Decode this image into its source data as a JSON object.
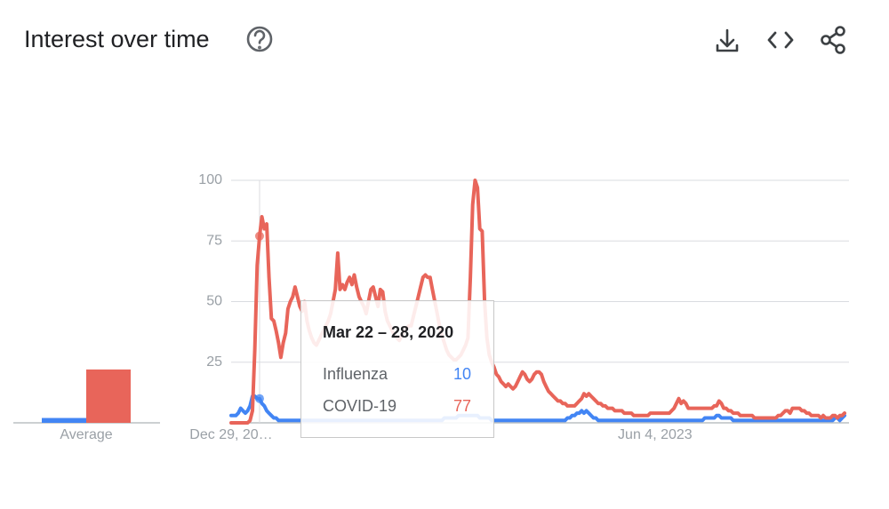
{
  "header": {
    "title": "Interest over time"
  },
  "chart_data": {
    "type": "line",
    "categories": [
      "Dec 29, 20…",
      null,
      null,
      null,
      null,
      null,
      null,
      null,
      null,
      null,
      null,
      null,
      null,
      null,
      null,
      null,
      null,
      null,
      null,
      null,
      null,
      null,
      null,
      null,
      null,
      null,
      null,
      null,
      null,
      null,
      null,
      null,
      null,
      null,
      null,
      null,
      null,
      null,
      null,
      null,
      null,
      null,
      null,
      null,
      null,
      null,
      null,
      null,
      null,
      null,
      null,
      null,
      null,
      null,
      null,
      null,
      null,
      null,
      null,
      null,
      null,
      null,
      null,
      null,
      null,
      null,
      null,
      null,
      null,
      null,
      null,
      null,
      null,
      null,
      null,
      null,
      null,
      null,
      null,
      null,
      null,
      null,
      null,
      null,
      null,
      null,
      null,
      null,
      null,
      null,
      null,
      null,
      null,
      null,
      null,
      null,
      null,
      null,
      null,
      null,
      null,
      null,
      null,
      null,
      null,
      null,
      null,
      null,
      null,
      null,
      null,
      null,
      null,
      null,
      null,
      null,
      null,
      null,
      null,
      null,
      null,
      null,
      null,
      null,
      null,
      null,
      null,
      null,
      null,
      null,
      null,
      null,
      null,
      null,
      null,
      null,
      null,
      null,
      null,
      null,
      null,
      null,
      null,
      null,
      null,
      null,
      null,
      null,
      null,
      null,
      null,
      null,
      null,
      null,
      null,
      null,
      null,
      null,
      null,
      null,
      null,
      null,
      null,
      null,
      null,
      null,
      null,
      null,
      null,
      null,
      null,
      null,
      null,
      null,
      null,
      null,
      null,
      null,
      null,
      "Jun 4, 2023",
      null,
      null,
      null,
      null,
      null,
      null,
      null,
      null,
      null,
      null,
      null,
      null,
      null,
      null,
      null,
      null,
      null,
      null,
      null,
      null,
      null,
      null,
      null,
      null,
      null,
      null,
      null,
      null,
      null,
      null,
      null,
      null,
      null,
      null,
      null,
      null,
      null,
      null,
      null,
      null,
      null,
      null,
      null,
      null,
      null,
      null,
      null,
      null,
      null,
      null,
      null,
      null,
      null,
      null,
      null,
      null,
      null,
      null,
      null,
      null,
      null,
      null,
      null,
      null,
      null,
      null,
      null,
      null,
      null,
      null,
      null,
      null,
      null,
      null,
      null,
      null,
      null,
      null,
      null,
      null
    ],
    "ylim": [
      0,
      100
    ],
    "yticks": [
      25,
      50,
      75,
      100
    ],
    "grid": true,
    "series": [
      {
        "name": "Influenza",
        "color": "#4285f4",
        "values": [
          3,
          3,
          3,
          4,
          6,
          5,
          4,
          5,
          7,
          11,
          11,
          10,
          10,
          8,
          7,
          5,
          4,
          3,
          2,
          2,
          1,
          1,
          1,
          1,
          1,
          1,
          1,
          1,
          1,
          1,
          1,
          1,
          1,
          1,
          1,
          1,
          1,
          1,
          1,
          1,
          1,
          1,
          1,
          1,
          1,
          1,
          1,
          1,
          1,
          1,
          1,
          1,
          1,
          1,
          1,
          1,
          1,
          1,
          1,
          1,
          1,
          1,
          1,
          1,
          1,
          1,
          1,
          1,
          1,
          1,
          1,
          1,
          1,
          1,
          1,
          1,
          1,
          1,
          1,
          1,
          1,
          1,
          1,
          1,
          1,
          1,
          1,
          1,
          1,
          1,
          2,
          2,
          2,
          2,
          2,
          2,
          3,
          3,
          3,
          3,
          3,
          3,
          3,
          3,
          3,
          2,
          2,
          2,
          2,
          2,
          1,
          1,
          1,
          1,
          1,
          1,
          1,
          1,
          1,
          1,
          1,
          1,
          1,
          1,
          1,
          1,
          1,
          1,
          1,
          1,
          1,
          1,
          1,
          1,
          1,
          1,
          1,
          1,
          1,
          1,
          1,
          1,
          2,
          2,
          3,
          3,
          4,
          4,
          5,
          4,
          5,
          4,
          3,
          2,
          2,
          1,
          1,
          1,
          1,
          1,
          1,
          1,
          1,
          1,
          1,
          1,
          1,
          1,
          1,
          1,
          1,
          1,
          1,
          1,
          1,
          1,
          1,
          1,
          1,
          1,
          1,
          1,
          1,
          1,
          1,
          1,
          1,
          1,
          1,
          1,
          1,
          1,
          1,
          1,
          1,
          1,
          1,
          1,
          1,
          1,
          2,
          2,
          2,
          2,
          2,
          3,
          3,
          2,
          2,
          2,
          2,
          2,
          1,
          1,
          1,
          1,
          1,
          1,
          1,
          1,
          1,
          1,
          1,
          1,
          1,
          1,
          1,
          1,
          1,
          1,
          1,
          1,
          1,
          1,
          1,
          1,
          1,
          1,
          1,
          1,
          1,
          1,
          1,
          1,
          1,
          1,
          1,
          1,
          1,
          1,
          1,
          1,
          1,
          1,
          1,
          2,
          2,
          1,
          2,
          3
        ]
      },
      {
        "name": "COVID-19",
        "color": "#e8655a",
        "values": [
          0,
          0,
          0,
          0,
          0,
          0,
          0,
          0,
          1,
          5,
          30,
          65,
          77,
          85,
          80,
          82,
          60,
          43,
          42,
          38,
          33,
          27,
          33,
          37,
          47,
          50,
          52,
          56,
          52,
          48,
          46,
          50,
          42,
          38,
          35,
          33,
          32,
          34,
          36,
          38,
          40,
          42,
          45,
          50,
          55,
          70,
          55,
          57,
          55,
          58,
          60,
          57,
          61,
          56,
          52,
          50,
          48,
          45,
          50,
          55,
          56,
          52,
          48,
          55,
          54,
          46,
          42,
          40,
          38,
          36,
          35,
          34,
          36,
          38,
          39,
          40,
          40,
          44,
          48,
          52,
          56,
          60,
          61,
          60,
          60,
          55,
          50,
          45,
          40,
          36,
          33,
          30,
          28,
          27,
          26,
          26,
          27,
          28,
          30,
          32,
          35,
          60,
          90,
          100,
          97,
          80,
          79,
          50,
          35,
          28,
          25,
          23,
          20,
          19,
          17,
          16,
          15,
          16,
          15,
          14,
          15,
          17,
          19,
          21,
          20,
          18,
          17,
          18,
          20,
          21,
          21,
          20,
          17,
          15,
          13,
          12,
          11,
          10,
          9,
          9,
          8,
          8,
          7,
          7,
          7,
          7,
          8,
          9,
          10,
          12,
          11,
          12,
          11,
          10,
          9,
          8,
          8,
          7,
          7,
          6,
          6,
          6,
          5,
          5,
          5,
          5,
          4,
          4,
          4,
          4,
          3,
          3,
          3,
          3,
          3,
          3,
          3,
          4,
          4,
          4,
          4,
          4,
          4,
          4,
          4,
          4,
          5,
          6,
          8,
          10,
          8,
          9,
          8,
          6,
          6,
          6,
          6,
          6,
          6,
          6,
          6,
          6,
          6,
          6,
          7,
          7,
          9,
          8,
          6,
          6,
          5,
          5,
          4,
          4,
          4,
          3,
          3,
          3,
          3,
          3,
          3,
          2,
          2,
          2,
          2,
          2,
          2,
          2,
          2,
          2,
          2,
          3,
          3,
          4,
          5,
          5,
          4,
          6,
          6,
          6,
          6,
          5,
          5,
          4,
          4,
          3,
          3,
          3,
          3,
          2,
          3,
          2,
          2,
          2,
          3,
          3,
          2,
          3,
          3,
          4
        ]
      }
    ],
    "average": {
      "label": "Average",
      "values": [
        2,
        22
      ]
    },
    "tooltip": {
      "title": "Mar 22 – 28, 2020",
      "index": 12
    }
  }
}
